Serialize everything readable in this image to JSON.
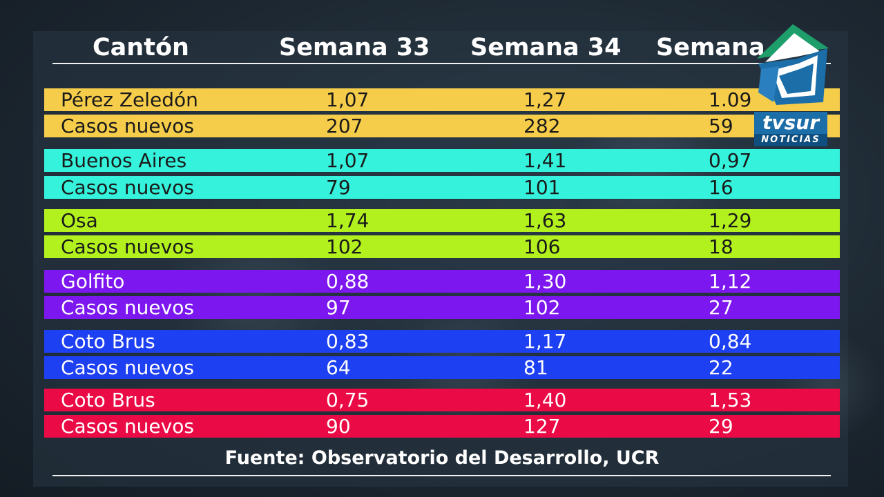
{
  "header": {
    "col0": "Cantón",
    "col1": "Semana 33",
    "col2": "Semana 34",
    "col3": "Semana"
  },
  "rows": [
    {
      "label": "Pérez Zeledón",
      "v1": "1,07",
      "v2": "1,27",
      "v3": "1.09",
      "color": "#f5cd4a"
    },
    {
      "label": "Casos nuevos",
      "v1": "207",
      "v2": "282",
      "v3": "59",
      "color": "#f5cd4a"
    },
    {
      "label": "Buenos Aires",
      "v1": "1,07",
      "v2": "1,41",
      "v3": "0,97",
      "color": "#35f2dc"
    },
    {
      "label": "Casos nuevos",
      "v1": "79",
      "v2": "101",
      "v3": "16",
      "color": "#35f2dc"
    },
    {
      "label": "Osa",
      "v1": "1,74",
      "v2": "1,63",
      "v3": "1,29",
      "color": "#b2f11e"
    },
    {
      "label": "Casos nuevos",
      "v1": "102",
      "v2": "106",
      "v3": "18",
      "color": "#b2f11e"
    },
    {
      "label": "Golfito",
      "v1": "0,88",
      "v2": "1,30",
      "v3": "1,12",
      "color": "#7d17ef"
    },
    {
      "label": "Casos nuevos",
      "v1": "97",
      "v2": "102",
      "v3": "27",
      "color": "#7d17ef"
    },
    {
      "label": "Coto Brus",
      "v1": "0,83",
      "v2": "1,17",
      "v3": "0,84",
      "color": "#1d40f2"
    },
    {
      "label": "Casos nuevos",
      "v1": "64",
      "v2": "81",
      "v3": "22",
      "color": "#1d40f2"
    },
    {
      "label": "Coto Brus",
      "v1": "0,75",
      "v2": "1,40",
      "v3": "1,53",
      "color": "#ea0a45"
    },
    {
      "label": "Casos nuevos",
      "v1": "90",
      "v2": "127",
      "v3": "29",
      "color": "#ea0a45"
    }
  ],
  "footer": "Fuente: Observatorio del Desarrollo, UCR",
  "logo": {
    "word": "tvsur",
    "sub": "NOTICIAS",
    "icon": "tvsur-logo-icon"
  }
}
